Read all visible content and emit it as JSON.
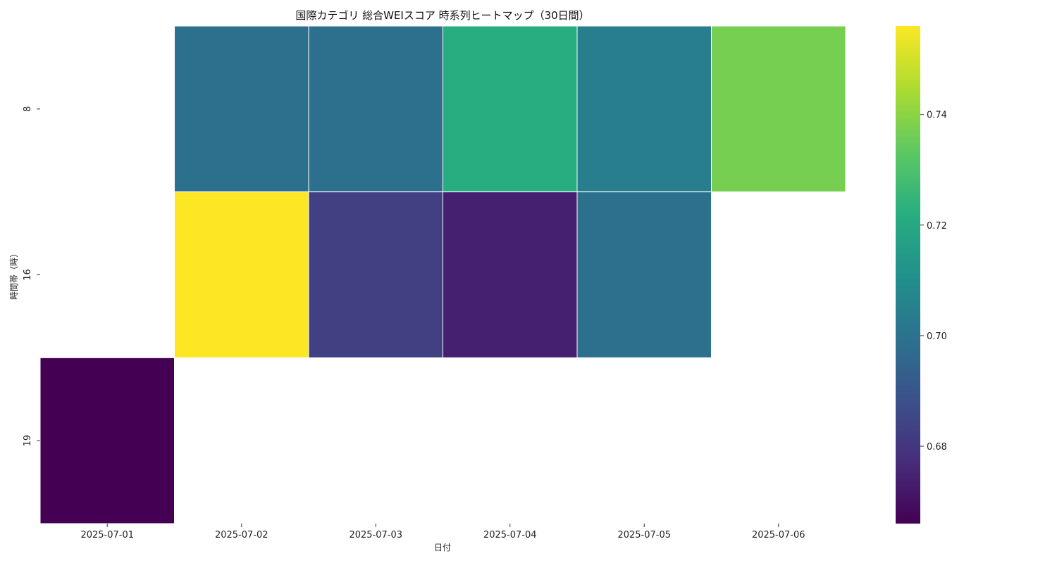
{
  "chart_data": {
    "type": "heatmap",
    "title": "国際カテゴリ 総合WEIスコア 時系列ヒートマップ（30日間）",
    "xlabel": "日付",
    "ylabel": "時間帯（時）",
    "x_categories": [
      "2025-07-01",
      "2025-07-02",
      "2025-07-03",
      "2025-07-04",
      "2025-07-05",
      "2025-07-06"
    ],
    "y_categories": [
      "8",
      "16",
      "19"
    ],
    "values": [
      [
        null,
        0.699,
        0.699,
        0.722,
        0.704,
        0.737
      ],
      [
        null,
        0.756,
        0.683,
        0.674,
        0.699,
        null
      ],
      [
        0.666,
        null,
        null,
        null,
        null,
        null
      ]
    ],
    "colorbar": {
      "colormap": "viridis",
      "vmin": 0.666,
      "vmax": 0.756,
      "ticks": [
        0.68,
        0.7,
        0.72,
        0.74
      ],
      "tick_labels": [
        "0.68",
        "0.70",
        "0.72",
        "0.74"
      ]
    }
  }
}
